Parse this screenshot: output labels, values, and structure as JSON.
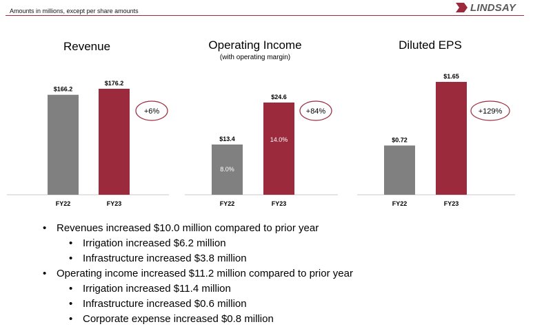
{
  "header": {
    "note": "Amounts in millions, except per share amounts",
    "logo_text": "LINDSAY"
  },
  "colors": {
    "fy22": "#808080",
    "fy23": "#9b2a3d",
    "accent": "#9b2a3d"
  },
  "chart_data": [
    {
      "type": "bar",
      "title": "Revenue",
      "subtitle": "",
      "categories": [
        "FY22",
        "FY23"
      ],
      "values": [
        166.2,
        176.2
      ],
      "value_labels": [
        "$166.2",
        "$176.2"
      ],
      "inner_labels": [
        "",
        ""
      ],
      "change_label": "+6%"
    },
    {
      "type": "bar",
      "title": "Operating Income",
      "subtitle": "(with operating margin)",
      "categories": [
        "FY22",
        "FY23"
      ],
      "values": [
        13.4,
        24.6
      ],
      "value_labels": [
        "$13.4",
        "$24.6"
      ],
      "inner_labels": [
        "8.0%",
        "14.0%"
      ],
      "change_label": "+84%"
    },
    {
      "type": "bar",
      "title": "Diluted EPS",
      "subtitle": "",
      "categories": [
        "FY22",
        "FY23"
      ],
      "values": [
        0.72,
        1.65
      ],
      "value_labels": [
        "$0.72",
        "$1.65"
      ],
      "inner_labels": [
        "",
        ""
      ],
      "change_label": "+129%"
    }
  ],
  "bullets": [
    {
      "level": 1,
      "text": "Revenues increased $10.0 million compared to prior year"
    },
    {
      "level": 2,
      "text": "Irrigation increased $6.2 million"
    },
    {
      "level": 2,
      "text": "Infrastructure increased $3.8 million"
    },
    {
      "level": 1,
      "text": "Operating income increased $11.2 million compared to prior year"
    },
    {
      "level": 2,
      "text": "Irrigation increased $11.4 million"
    },
    {
      "level": 2,
      "text": "Infrastructure increased $0.6 million"
    },
    {
      "level": 2,
      "text": "Corporate expense increased $0.8 million"
    }
  ]
}
